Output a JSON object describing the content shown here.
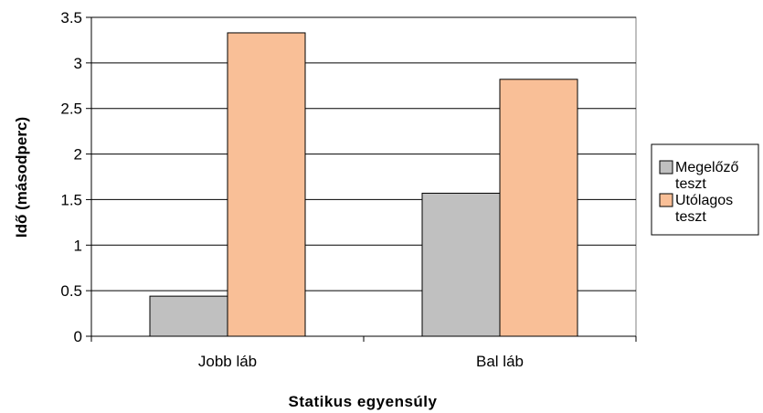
{
  "chart_data": {
    "type": "bar",
    "categories": [
      "Jobb láb",
      "Bal láb"
    ],
    "series": [
      {
        "name": "Megelőző teszt",
        "values": [
          0.44,
          1.57
        ],
        "color": "#c0c0c0"
      },
      {
        "name": "Utólagos teszt",
        "values": [
          3.33,
          2.82
        ],
        "color": "#f9bf97"
      }
    ],
    "xlabel": "Statikus egyensúly",
    "ylabel": "Idő (másodperc)",
    "ylim": [
      0,
      3.5
    ],
    "yticks": [
      "0",
      "0.5",
      "1",
      "1.5",
      "2",
      "2.5",
      "3",
      "3.5"
    ],
    "grid": true,
    "legend_position": "right",
    "legend": [
      {
        "line1": "Megelőző",
        "line2": "teszt"
      },
      {
        "line1": "Utólagos",
        "line2": "teszt"
      }
    ]
  }
}
